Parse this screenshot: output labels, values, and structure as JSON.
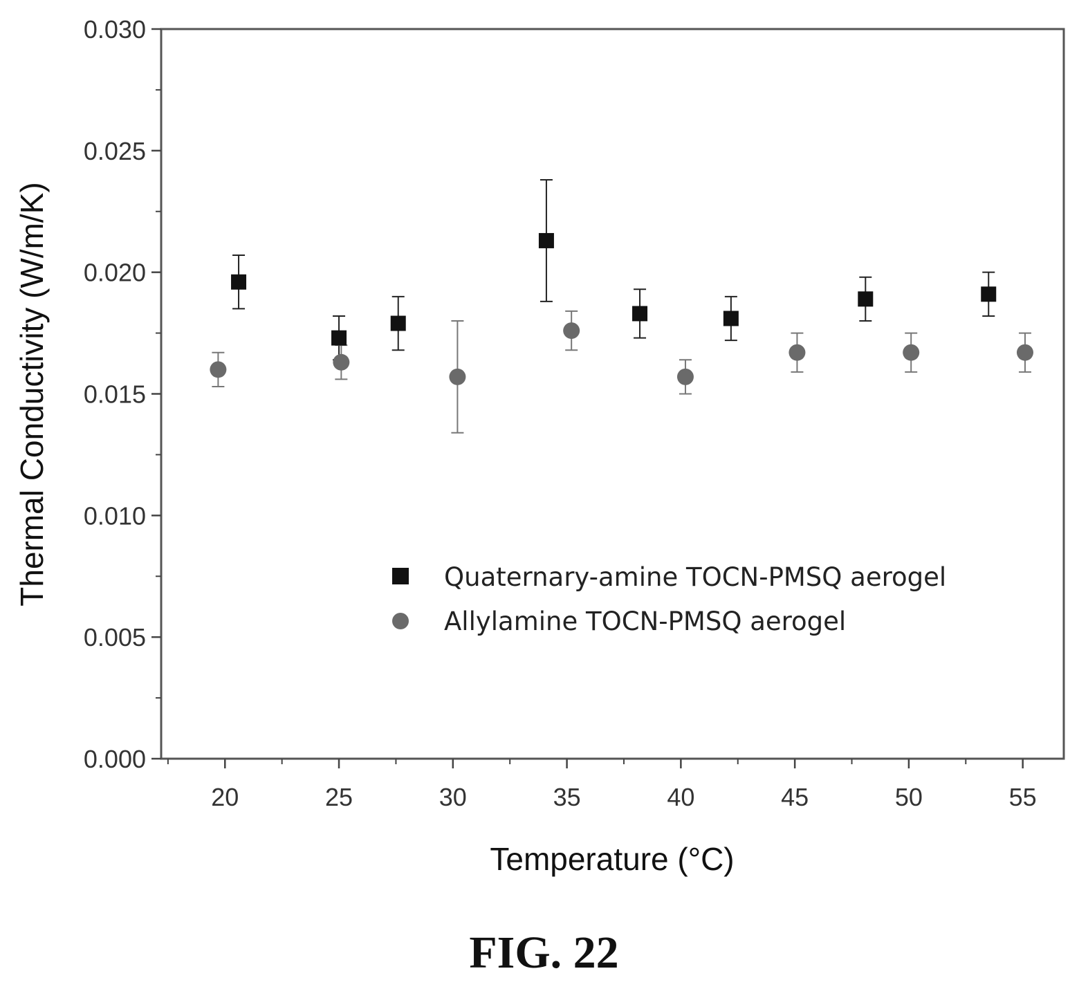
{
  "chart_data": {
    "type": "scatter",
    "xlabel": "Temperature (°C)",
    "ylabel": "Thermal Conductivity (W/m/K)",
    "xlim": [
      17.2,
      56.8
    ],
    "ylim": [
      0.0,
      0.03
    ],
    "x_ticks": [
      "20",
      "25",
      "30",
      "35",
      "40",
      "45",
      "50",
      "55"
    ],
    "y_ticks": [
      "0.000",
      "0.005",
      "0.010",
      "0.015",
      "0.020",
      "0.025",
      "0.030"
    ],
    "grid": false,
    "legend_position": "center-right",
    "series": [
      {
        "name": "Quaternary-amine TOCN-PMSQ aerogel",
        "marker": "square",
        "color": "#111111",
        "points": [
          {
            "x": 20.6,
            "y": 0.0196,
            "err": 0.0011
          },
          {
            "x": 25.0,
            "y": 0.0173,
            "err": 0.0009
          },
          {
            "x": 27.6,
            "y": 0.0179,
            "err": 0.0011
          },
          {
            "x": 34.1,
            "y": 0.0213,
            "err": 0.0025
          },
          {
            "x": 38.2,
            "y": 0.0183,
            "err": 0.001
          },
          {
            "x": 42.2,
            "y": 0.0181,
            "err": 0.0009
          },
          {
            "x": 48.1,
            "y": 0.0189,
            "err": 0.0009
          },
          {
            "x": 53.5,
            "y": 0.0191,
            "err": 0.0009
          }
        ]
      },
      {
        "name": "Allylamine TOCN-PMSQ aerogel",
        "marker": "circle",
        "color": "#6a6a6a",
        "points": [
          {
            "x": 19.7,
            "y": 0.016,
            "err": 0.0007
          },
          {
            "x": 25.1,
            "y": 0.0163,
            "err": 0.0007
          },
          {
            "x": 30.2,
            "y": 0.0157,
            "err": 0.0023
          },
          {
            "x": 35.2,
            "y": 0.0176,
            "err": 0.0008
          },
          {
            "x": 40.2,
            "y": 0.0157,
            "err": 0.0007
          },
          {
            "x": 45.1,
            "y": 0.0167,
            "err": 0.0008
          },
          {
            "x": 50.1,
            "y": 0.0167,
            "err": 0.0008
          },
          {
            "x": 55.1,
            "y": 0.0167,
            "err": 0.0008
          }
        ]
      }
    ]
  },
  "figure": {
    "caption": "FIG. 22"
  }
}
